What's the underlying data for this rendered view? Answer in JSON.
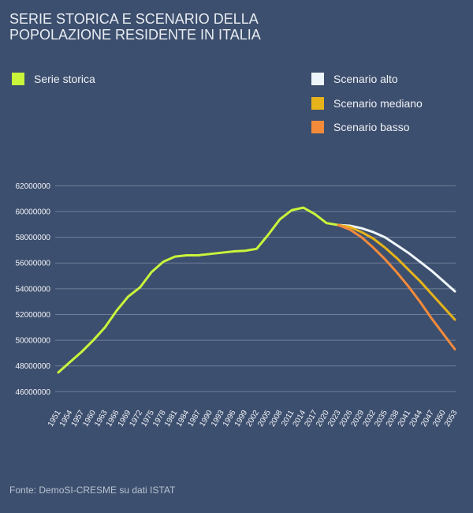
{
  "chart_data": {
    "type": "line",
    "title": "SERIE STORICA E SCENARIO DELLA POPOLAZIONE RESIDENTE IN ITALIA",
    "source": "Fonte: DemoSI-CRESME su dati ISTAT",
    "x": [
      1951,
      1954,
      1957,
      1960,
      1963,
      1966,
      1969,
      1972,
      1975,
      1978,
      1981,
      1984,
      1987,
      1990,
      1993,
      1996,
      1999,
      2002,
      2005,
      2008,
      2011,
      2014,
      2017,
      2020,
      2023,
      2026,
      2029,
      2032,
      2035,
      2038,
      2041,
      2044,
      2047,
      2050,
      2053
    ],
    "xlim": [
      1951,
      2053
    ],
    "xticks": [
      1951,
      1954,
      1957,
      1960,
      1963,
      1966,
      1969,
      1972,
      1975,
      1978,
      1981,
      1984,
      1987,
      1990,
      1993,
      1996,
      1999,
      2002,
      2005,
      2008,
      2011,
      2014,
      2017,
      2020,
      2023,
      2026,
      2029,
      2032,
      2035,
      2038,
      2041,
      2044,
      2047,
      2050,
      2053
    ],
    "ylim": [
      45000000,
      62000000
    ],
    "yticks": [
      46000000,
      48000000,
      50000000,
      52000000,
      54000000,
      56000000,
      58000000,
      60000000,
      62000000
    ],
    "grid": true,
    "series": [
      {
        "name": "Serie storica",
        "color": "#c9f53b",
        "values": [
          47500000,
          48300000,
          49100000,
          50000000,
          51000000,
          52300000,
          53400000,
          54100000,
          55300000,
          56100000,
          56500000,
          56600000,
          56600000,
          56700000,
          56800000,
          56900000,
          56950000,
          57100000,
          58200000,
          59400000,
          60100000,
          60300000,
          59800000,
          59100000,
          58950000,
          null,
          null,
          null,
          null,
          null,
          null,
          null,
          null,
          null,
          null
        ]
      },
      {
        "name": "Scenario alto",
        "color": "#eef6fb",
        "values": [
          null,
          null,
          null,
          null,
          null,
          null,
          null,
          null,
          null,
          null,
          null,
          null,
          null,
          null,
          null,
          null,
          null,
          null,
          null,
          null,
          null,
          null,
          null,
          null,
          58950000,
          58900000,
          58700000,
          58400000,
          58000000,
          57400000,
          56800000,
          56100000,
          55400000,
          54600000,
          53800000
        ]
      },
      {
        "name": "Scenario mediano",
        "color": "#e6b31a",
        "values": [
          null,
          null,
          null,
          null,
          null,
          null,
          null,
          null,
          null,
          null,
          null,
          null,
          null,
          null,
          null,
          null,
          null,
          null,
          null,
          null,
          null,
          null,
          null,
          null,
          58950000,
          58800000,
          58400000,
          57900000,
          57200000,
          56400000,
          55500000,
          54600000,
          53600000,
          52600000,
          51600000
        ]
      },
      {
        "name": "Scenario basso",
        "color": "#f48b3b",
        "values": [
          null,
          null,
          null,
          null,
          null,
          null,
          null,
          null,
          null,
          null,
          null,
          null,
          null,
          null,
          null,
          null,
          null,
          null,
          null,
          null,
          null,
          null,
          null,
          null,
          58950000,
          58600000,
          58000000,
          57200000,
          56300000,
          55300000,
          54200000,
          53000000,
          51700000,
          50500000,
          49300000
        ]
      }
    ]
  }
}
